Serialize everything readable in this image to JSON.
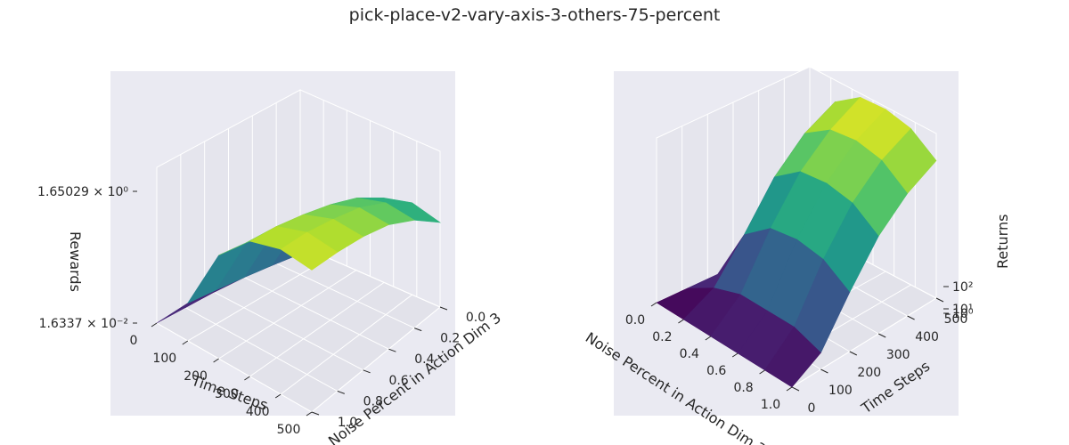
{
  "figure": {
    "title": "pick-place-v2-vary-axis-3-others-75-percent"
  },
  "colormap": "viridis",
  "chart_data": [
    {
      "type": "surface3d",
      "x": {
        "label": "Time Steps",
        "ticks": [
          "0",
          "100",
          "200",
          "300",
          "400",
          "500"
        ],
        "range": [
          0,
          500
        ]
      },
      "y": {
        "label": "Noise Percent in Action Dim 3",
        "ticks": [
          "0.0",
          "0.2",
          "0.4",
          "0.6",
          "0.8",
          "1.0"
        ],
        "range": [
          0,
          1
        ]
      },
      "z": {
        "label": "Rewards",
        "scale": "log",
        "ticks": [
          "1.6337 × 10⁻²",
          "1.65029 × 10⁰"
        ],
        "range": [
          0.016337,
          1.65029
        ]
      },
      "surface": {
        "x": [
          0,
          100,
          200,
          300,
          400,
          500
        ],
        "y": [
          0.0,
          0.2,
          0.4,
          0.6,
          0.8,
          1.0
        ],
        "z": [
          [
            0.016,
            0.05,
            0.35,
            0.9,
            1.2,
            1.1
          ],
          [
            0.016,
            0.045,
            0.3,
            0.8,
            1.1,
            1.0
          ],
          [
            0.016,
            0.04,
            0.25,
            0.65,
            0.9,
            0.85
          ],
          [
            0.016,
            0.035,
            0.2,
            0.5,
            0.7,
            0.65
          ],
          [
            0.016,
            0.03,
            0.15,
            0.35,
            0.45,
            0.4
          ],
          [
            0.016,
            0.025,
            0.1,
            0.2,
            0.25,
            0.2
          ]
        ]
      },
      "grid": true
    },
    {
      "type": "surface3d",
      "x": {
        "label": "Noise Percent in Action Dim 3",
        "ticks": [
          "0.0",
          "0.2",
          "0.4",
          "0.6",
          "0.8",
          "1.0"
        ],
        "range": [
          0,
          1
        ]
      },
      "y": {
        "label": "Time Steps",
        "ticks": [
          "0",
          "100",
          "200",
          "300",
          "400",
          "500"
        ],
        "range": [
          0,
          500
        ]
      },
      "z": {
        "label": "Returns",
        "scale": "log",
        "ticks": [
          "10⁰",
          "10¹",
          "10²"
        ],
        "range": [
          1,
          1000
        ]
      },
      "surface": {
        "x": [
          0.0,
          0.2,
          0.4,
          0.6,
          0.8,
          1.0
        ],
        "y": [
          0,
          100,
          200,
          300,
          400,
          500
        ],
        "z": [
          [
            1,
            1,
            1,
            1,
            1,
            1
          ],
          [
            1,
            2,
            3,
            3,
            3,
            2
          ],
          [
            1,
            10,
            25,
            30,
            25,
            12
          ],
          [
            1,
            60,
            140,
            160,
            130,
            60
          ],
          [
            1,
            200,
            420,
            480,
            380,
            170
          ],
          [
            1,
            400,
            850,
            900,
            700,
            320
          ]
        ]
      },
      "grid": true
    }
  ]
}
